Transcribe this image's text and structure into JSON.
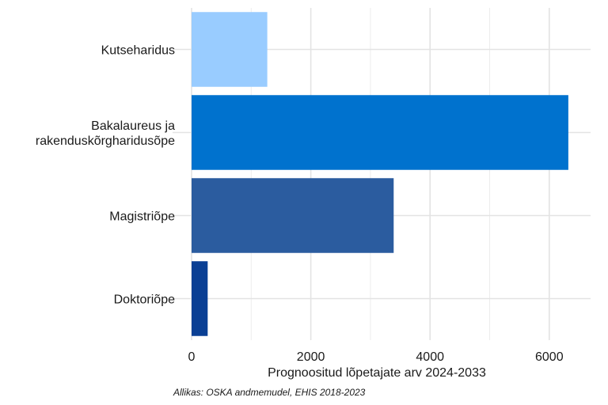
{
  "chart_data": {
    "type": "bar",
    "orientation": "horizontal",
    "categories": [
      "Kutseharidus",
      "Bakalaureus ja\nrakenduskõrgharidusõpe",
      "Magistriõpe",
      "Doktoriõpe"
    ],
    "values": [
      1270,
      6320,
      3390,
      270
    ],
    "colors": [
      "#99CCFF",
      "#0072CE",
      "#2B5C9F",
      "#0A3F94"
    ],
    "xlabel": "Prognoositud lõpetajate arv 2024-2033",
    "ylabel": "",
    "xlim": [
      0,
      6700
    ],
    "xticks": [
      0,
      2000,
      4000,
      6000
    ],
    "grid": true,
    "caption": "Allikas: OSKA andmemudel, EHIS 2018-2023"
  }
}
